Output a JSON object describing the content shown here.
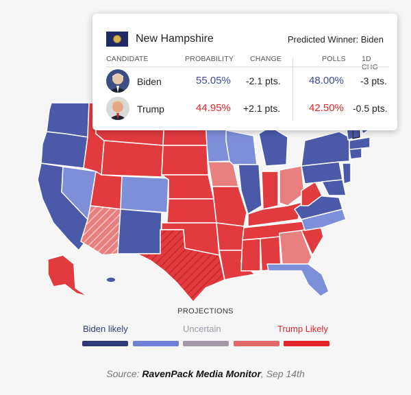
{
  "tooltip": {
    "state": "New Hampshire",
    "winner": "Predicted Winner: Biden",
    "columns": {
      "candidate": "CANDIDATE",
      "probability": "PROBABILITY",
      "change": "CHANGE",
      "polls": "POLLS",
      "day_change": "1D CHG"
    },
    "rows": [
      {
        "name": "Biden",
        "probability": "55.05%",
        "change": "-2.1 pts.",
        "polls": "48.00%",
        "day_change": "-3 pts.",
        "color": "#3a4a9c"
      },
      {
        "name": "Trump",
        "probability": "44.95%",
        "change": "+2.1 pts.",
        "polls": "42.50%",
        "day_change": "-0.5 pts.",
        "color": "#e0242a"
      }
    ]
  },
  "legend": {
    "title": "PROJECTIONS",
    "biden_likely": "Biden likely",
    "uncertain": "Uncertain",
    "trump_likely": "Trump Likely",
    "colors": [
      "#2e3a7c",
      "#6e80d6",
      "#a498a8",
      "#e36a6a",
      "#e0242a"
    ]
  },
  "source": {
    "prefix": "Source: ",
    "name": "RavenPack Media Monitor",
    "suffix": ", Sep 14th"
  },
  "map_colors": {
    "biden_likely": "#4a5aa8",
    "biden_lean": "#7d8fd8",
    "uncertain_red": "#e88080",
    "trump_likely": "#e23b3f"
  }
}
